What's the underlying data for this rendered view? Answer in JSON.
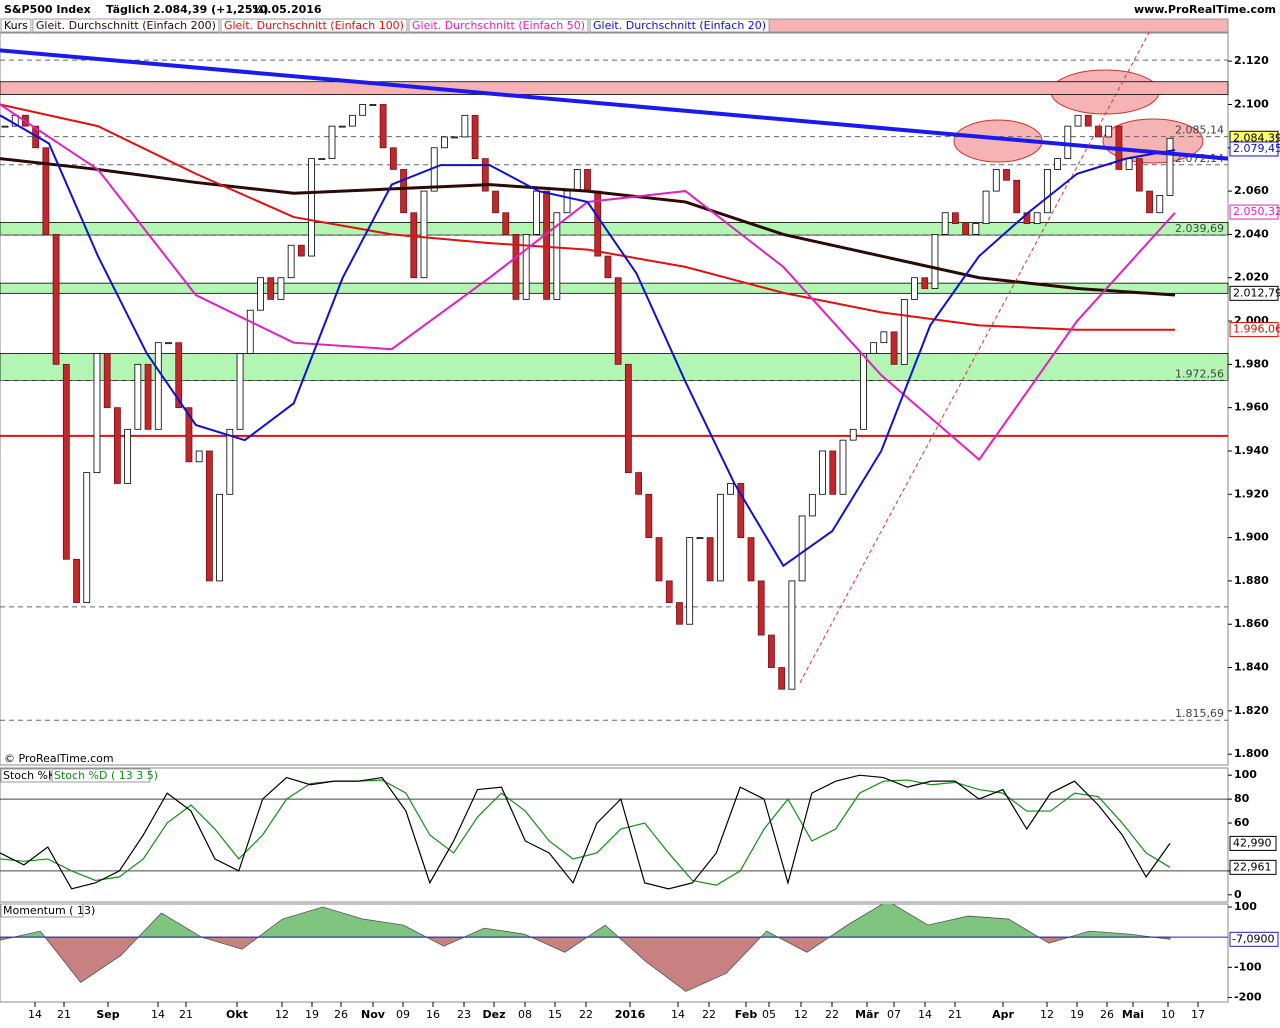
{
  "header": {
    "title": "S&P500 Index",
    "period": "Täglich",
    "quote": "2.084,39 (+1,25%)",
    "date": "10.05.2016",
    "site": "www.ProRealTime.com",
    "copyright": "© ProRealTime.com"
  },
  "legend": [
    "Kurs",
    "Gleit. Durchschnitt (Einfach 200)",
    "Gleit. Durchschnitt (Einfach 100)",
    "Gleit. Durchschnitt (Einfach 50)",
    "Gleit. Durchschnitt (Einfach 20)"
  ],
  "chart_data": [
    {
      "type": "candlestick",
      "name": "Kurs",
      "values": [
        2090,
        2095,
        2090,
        2080,
        2040,
        1980,
        1890,
        1870,
        1930,
        1985,
        1960,
        1925,
        1950,
        1980,
        1950,
        1990,
        1990,
        1960,
        1935,
        1940,
        1880,
        1920,
        1950,
        1985,
        2005,
        2020,
        2010,
        2020,
        2035,
        2030,
        2075,
        2075,
        2090,
        2090,
        2095,
        2100,
        2100,
        2080,
        2070,
        2050,
        2020,
        2060,
        2080,
        2085,
        2085,
        2095,
        2075,
        2060,
        2050,
        2040,
        2010,
        2040,
        2060,
        2010,
        2050,
        2060,
        2070,
        2060,
        2030,
        2020,
        1980,
        1930,
        1920,
        1900,
        1880,
        1870,
        1860,
        1900,
        1900,
        1880,
        1920,
        1925,
        1900,
        1880,
        1855,
        1840,
        1830,
        1880,
        1910,
        1920,
        1940,
        1920,
        1945,
        1950,
        1985,
        1990,
        1995,
        1980,
        2010,
        2020,
        2015,
        2040,
        2050,
        2045,
        2040,
        2045,
        2060,
        2070,
        2065,
        2050,
        2045,
        2050,
        2070,
        2075,
        2090,
        2095,
        2090,
        2085,
        2090,
        2070,
        2075,
        2060,
        2050,
        2058,
        2084.39
      ],
      "series": [
        {
          "name": "Gleit. Durchschnitt (Einfach 200)",
          "color": "#2b0a05",
          "values": [
            2075,
            2070,
            2064,
            2059,
            2061,
            2063,
            2060,
            2055,
            2040,
            2030,
            2020,
            2015,
            2012
          ]
        },
        {
          "name": "Gleit. Durchschnitt (Einfach 100)",
          "color": "#e01010",
          "values": [
            2100,
            2090,
            2068,
            2048,
            2040,
            2036,
            2033,
            2025,
            2013,
            2004,
            1998,
            1996,
            1996
          ]
        },
        {
          "name": "Gleit. Durchschnitt (Einfach 50)",
          "color": "#e020c0",
          "values": [
            2100,
            2070,
            2012,
            1990,
            1987,
            2020,
            2055,
            2060,
            2025,
            1975,
            1936,
            2000,
            2050
          ]
        },
        {
          "name": "Gleit. Durchschnitt (Einfach 20)",
          "color": "#1010d0",
          "values": [
            2095,
            2082,
            2030,
            1985,
            1952,
            1945,
            1962,
            2020,
            2063,
            2072,
            2072,
            2060,
            2055,
            2022,
            1972,
            1925,
            1887,
            1903,
            1940,
            1998,
            2030,
            2050,
            2068,
            2075,
            2079
          ]
        }
      ],
      "ylim": [
        1795,
        2133
      ],
      "yticks": [
        {
          "value": 2120,
          "label": "2.120"
        },
        {
          "value": 2100,
          "label": "2.100"
        },
        {
          "value": 2080,
          "label": "2.080"
        },
        {
          "value": 2060,
          "label": "2.060"
        },
        {
          "value": 2040,
          "label": "2.040"
        },
        {
          "value": 2020,
          "label": "2.020"
        },
        {
          "value": 2000,
          "label": "2.000"
        },
        {
          "value": 1980,
          "label": "1.980"
        },
        {
          "value": 1960,
          "label": "1.960"
        },
        {
          "value": 1940,
          "label": "1.940"
        },
        {
          "value": 1920,
          "label": "1.920"
        },
        {
          "value": 1900,
          "label": "1.900"
        },
        {
          "value": 1880,
          "label": "1.880"
        },
        {
          "value": 1860,
          "label": "1.860"
        },
        {
          "value": 1840,
          "label": "1.840"
        },
        {
          "value": 1820,
          "label": "1.820"
        },
        {
          "value": 1800,
          "label": "1.800"
        }
      ],
      "zones": [
        {
          "from": 2104.6,
          "to": 2110.5,
          "color": "#f7b3b3"
        },
        {
          "from": 2039.69,
          "to": 2045.5,
          "color": "#b3f5b3"
        },
        {
          "from": 2012.79,
          "to": 2017.5,
          "color": "#b3f5b3"
        },
        {
          "from": 1972.56,
          "to": 1985,
          "color": "#b3f5b3"
        }
      ],
      "levels": [
        {
          "value": 2120.5
        },
        {
          "value": 2085.14,
          "label": "2.085,14"
        },
        {
          "value": 2072.14,
          "label": "2.072,14"
        },
        {
          "value": 2039.69,
          "label": "2.039,69"
        },
        {
          "value": 1972.56,
          "label": "1.972,56"
        },
        {
          "value": 1868
        },
        {
          "value": 1815.69,
          "label": "1.815,69"
        }
      ],
      "support": {
        "value": 1947,
        "color": "#e01010"
      },
      "trendlines": [
        {
          "start": 2125,
          "end": 2075,
          "color": "#1a1aee"
        },
        {
          "start": 1833,
          "end": 2134,
          "color": "#e03030"
        }
      ],
      "price_tags": [
        {
          "value": 2084.39,
          "label": "2.084,39",
          "color": "#ffff66"
        },
        {
          "value": 2079.45,
          "label": "2.079,45",
          "color": "#1010d0"
        },
        {
          "value": 2050.32,
          "label": "2.050,32",
          "color": "#e020c0"
        },
        {
          "value": 2012.79,
          "label": "2.012,79",
          "color": "#000000"
        },
        {
          "value": 1996.06,
          "label": "1.996,06",
          "color": "#e01010"
        }
      ]
    },
    {
      "type": "line",
      "series": [
        {
          "name": "Stoch %K",
          "color": "#000000",
          "values": [
            35,
            25,
            40,
            5,
            10,
            20,
            50,
            85,
            70,
            30,
            20,
            80,
            98,
            92,
            95,
            95,
            98,
            70,
            10,
            45,
            88,
            90,
            45,
            35,
            10,
            60,
            80,
            10,
            5,
            10,
            35,
            90,
            80,
            10,
            85,
            95,
            100,
            98,
            90,
            95,
            95,
            80,
            88,
            55,
            85,
            95,
            75,
            50,
            15,
            43
          ]
        },
        {
          "name": "Stoch %D ( 13 3 5)",
          "color": "#109010",
          "values": [
            30,
            28,
            30,
            20,
            12,
            15,
            30,
            60,
            75,
            55,
            30,
            50,
            80,
            93,
            95,
            95,
            96,
            85,
            50,
            35,
            65,
            85,
            70,
            45,
            30,
            35,
            55,
            60,
            35,
            12,
            8,
            20,
            55,
            80,
            45,
            55,
            85,
            95,
            96,
            92,
            94,
            88,
            85,
            70,
            70,
            85,
            82,
            60,
            35,
            23
          ]
        }
      ],
      "ylim": [
        -6,
        106
      ],
      "yticks": [
        100,
        80,
        60,
        20,
        0
      ],
      "guides": [
        80,
        20
      ],
      "price_tags": [
        {
          "value": 42.99,
          "label": "42,990"
        },
        {
          "value": 22.961,
          "label": "22,961"
        }
      ]
    },
    {
      "type": "area",
      "name": "Momentum ( 13)",
      "values": [
        -10,
        20,
        -150,
        -60,
        80,
        0,
        -40,
        60,
        100,
        60,
        40,
        -30,
        30,
        10,
        -50,
        40,
        -80,
        -180,
        -120,
        20,
        -50,
        40,
        120,
        40,
        70,
        60,
        -20,
        20,
        10,
        -7.09
      ],
      "ylim": [
        -215,
        110
      ],
      "yticks": [
        100,
        -100,
        -200
      ],
      "price_tags": [
        {
          "value": -7.09,
          "label": "-7,0900"
        }
      ]
    }
  ],
  "x_labels": [
    "14",
    "21",
    "Sep",
    "14",
    "21",
    "Okt",
    "12",
    "19",
    "26",
    "Nov",
    "09",
    "16",
    "23",
    "Dez",
    "08",
    "15",
    "22",
    "2016",
    "14",
    "22",
    "Feb",
    "05",
    "12",
    "22",
    "Mär",
    "07",
    "14",
    "21",
    "Apr",
    "12",
    "19",
    "26",
    "Mai",
    "10",
    "17"
  ]
}
